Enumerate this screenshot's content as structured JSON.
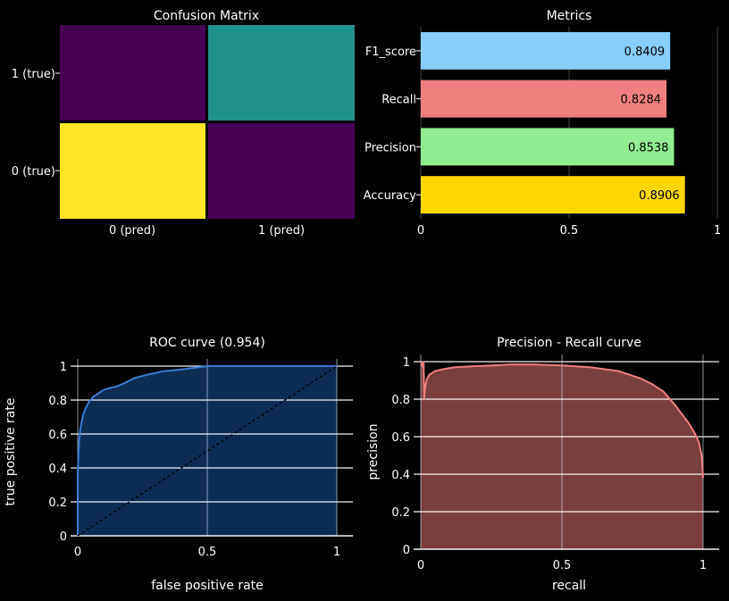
{
  "chart_data": [
    {
      "type": "heatmap",
      "title": "Confusion Matrix",
      "x_categories": [
        "0 (pred)",
        "1 (pred)"
      ],
      "y_categories": [
        "0 (true)",
        "1 (true)"
      ],
      "cell_colors": [
        [
          "#fde725",
          "#440154"
        ],
        [
          "#440154",
          "#21918c"
        ]
      ]
    },
    {
      "type": "bar",
      "orientation": "horizontal",
      "title": "Metrics",
      "categories": [
        "Accuracy",
        "Precision",
        "Recall",
        "F1_score"
      ],
      "values": [
        0.8906,
        0.8538,
        0.8284,
        0.8409
      ],
      "value_labels": [
        "0.8906",
        "0.8538",
        "0.8284",
        "0.8409"
      ],
      "colors": [
        "#ffd700",
        "#90ee90",
        "#f08080",
        "#87cefa"
      ],
      "xlim": [
        0,
        1
      ],
      "x_ticks": [
        "0",
        "0.5",
        "1"
      ]
    },
    {
      "type": "area",
      "title": "ROC curve (0.954)",
      "xlabel": "false positive rate",
      "ylabel": "true positive rate",
      "xlim": [
        0,
        1
      ],
      "ylim": [
        0,
        1
      ],
      "x_ticks": [
        "0",
        "0.5",
        "1"
      ],
      "y_ticks": [
        "0",
        "0.2",
        "0.4",
        "0.6",
        "0.8",
        "1"
      ],
      "fill_color": "#0d2c54",
      "line_color": "#3a7bd5",
      "series": [
        {
          "x": [
            0,
            0,
            0.005,
            0.01,
            0.02,
            0.03,
            0.04,
            0.05,
            0.06,
            0.08,
            0.1,
            0.12,
            0.15,
            0.18,
            0.22,
            0.27,
            0.33,
            0.4,
            0.45,
            0.5,
            0.6,
            0.7,
            0.8,
            0.9,
            1.0
          ],
          "y": [
            0,
            0.38,
            0.55,
            0.63,
            0.71,
            0.75,
            0.78,
            0.8,
            0.82,
            0.84,
            0.86,
            0.87,
            0.88,
            0.9,
            0.93,
            0.95,
            0.97,
            0.98,
            0.99,
            1.0,
            1.0,
            1.0,
            1.0,
            1.0,
            1.0
          ]
        },
        {
          "x": [
            0,
            1
          ],
          "y": [
            0,
            1
          ]
        }
      ]
    },
    {
      "type": "area",
      "title": "Precision - Recall curve",
      "xlabel": "recall",
      "ylabel": "precision",
      "xlim": [
        0,
        1
      ],
      "ylim": [
        0,
        1
      ],
      "x_ticks": [
        "0",
        "0.5",
        "1"
      ],
      "y_ticks": [
        "0",
        "0.2",
        "0.4",
        "0.6",
        "0.8",
        "1"
      ],
      "fill_color": "#7a3e3e",
      "line_color": "#f08080",
      "series": [
        {
          "x": [
            0,
            0.005,
            0.01,
            0.012,
            0.015,
            0.02,
            0.03,
            0.05,
            0.08,
            0.12,
            0.18,
            0.25,
            0.32,
            0.4,
            0.5,
            0.55,
            0.6,
            0.65,
            0.7,
            0.74,
            0.78,
            0.82,
            0.86,
            0.9,
            0.93,
            0.95,
            0.97,
            0.985,
            0.995,
            1.0
          ],
          "y": [
            1.0,
            0.98,
            1.0,
            0.8,
            0.86,
            0.9,
            0.93,
            0.95,
            0.96,
            0.97,
            0.975,
            0.98,
            0.985,
            0.985,
            0.98,
            0.975,
            0.97,
            0.96,
            0.95,
            0.93,
            0.91,
            0.88,
            0.84,
            0.77,
            0.71,
            0.67,
            0.62,
            0.57,
            0.5,
            0.38
          ]
        }
      ]
    }
  ]
}
